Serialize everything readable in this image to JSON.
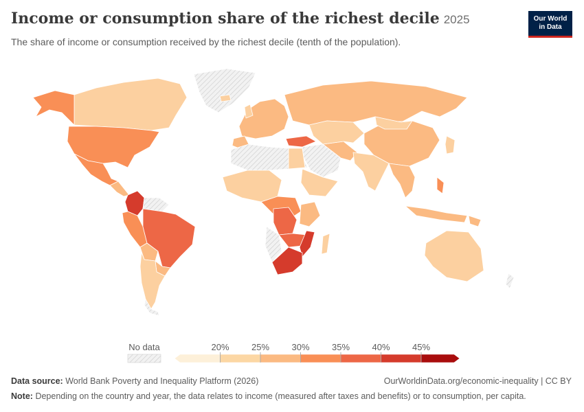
{
  "header": {
    "title": "Income or consumption share of the richest decile",
    "year": "2025",
    "subtitle": "The share of income or consumption received by the richest decile (tenth of the population)."
  },
  "logo": {
    "line1": "Our World",
    "line2": "in Data"
  },
  "legend": {
    "no_data_label": "No data",
    "ticks": [
      "20%",
      "25%",
      "30%",
      "35%",
      "40%",
      "45%"
    ],
    "colors": [
      "#fdf0d9",
      "#fcd7a4",
      "#fbba82",
      "#f98f56",
      "#ed6746",
      "#d53b2c",
      "#a90d0d"
    ]
  },
  "colors": {
    "no_data": "#e6e6e6",
    "ocean": "#ffffff",
    "border": "#ffffff"
  },
  "footer": {
    "source_label": "Data source:",
    "source_text": "World Bank Poverty and Inequality Platform (2026)",
    "url": "OurWorldinData.org/economic-inequality | CC BY",
    "note_label": "Note:",
    "note_text": "Depending on the country and year, the data relates to income (measured after taxes and benefits) or to consumption, per capita."
  }
}
